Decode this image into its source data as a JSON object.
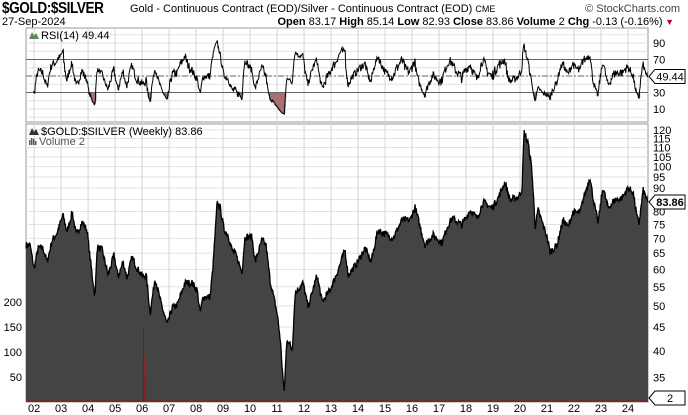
{
  "header": {
    "symbol": "$GOLD:$SILVER",
    "description": "Gold - Continuous Contract (EOD)/Silver - Continuous Contract (EOD)",
    "exchange": "CME",
    "brand": "© StockCharts.com",
    "date": "27-Sep-2024",
    "open_label": "Open",
    "open": "83.17",
    "high_label": "High",
    "high": "85.14",
    "low_label": "Low",
    "low": "82.93",
    "close_label": "Close",
    "close": "83.86",
    "volume_label": "Volume",
    "volume": "2",
    "chg_label": "Chg",
    "chg": "-0.13 (-0.16%)",
    "chg_color": "#c0003c"
  },
  "chart_data": [
    {
      "type": "line",
      "title": "RSI(14) 49.44",
      "indicator": "RSI(14)",
      "last_value": "49.44",
      "yticks": [
        10,
        30,
        50,
        70,
        90
      ],
      "ytick_labels": [
        "10",
        "30",
        "70",
        "90"
      ],
      "reference_lines": [
        30,
        50,
        70
      ],
      "ylim": [
        -5,
        108
      ],
      "line_color": "#000000",
      "oversold_fill_color": "#a87070",
      "grid": true
    },
    {
      "type": "area",
      "title": "$GOLD:$SILVER (Weekly) 83.86",
      "series_label": "$GOLD:$SILVER (Weekly)",
      "last_value": "83.86",
      "yscale": "log",
      "ylim": [
        31,
        127
      ],
      "yticks": [
        35,
        40,
        45,
        50,
        55,
        60,
        65,
        70,
        75,
        80,
        85,
        90,
        95,
        100,
        105,
        110,
        115,
        120
      ],
      "xticks": [
        "02",
        "03",
        "04",
        "05",
        "06",
        "07",
        "08",
        "09",
        "10",
        "11",
        "12",
        "13",
        "14",
        "15",
        "16",
        "17",
        "18",
        "19",
        "20",
        "21",
        "22",
        "23",
        "24"
      ],
      "xlim": [
        2001.7,
        2024.74
      ],
      "fill_color": "#444444",
      "line_color": "#000000",
      "grid": true,
      "points": [
        [
          2001.7,
          67.7
        ],
        [
          2001.85,
          67.7
        ],
        [
          2002.0,
          60.1
        ],
        [
          2002.15,
          66.7
        ],
        [
          2002.33,
          66.7
        ],
        [
          2002.48,
          62.2
        ],
        [
          2002.67,
          69.4
        ],
        [
          2002.85,
          71.9
        ],
        [
          2003.07,
          78.6
        ],
        [
          2003.22,
          72.2
        ],
        [
          2003.41,
          79.8
        ],
        [
          2003.56,
          71.2
        ],
        [
          2003.78,
          75.9
        ],
        [
          2003.96,
          73.0
        ],
        [
          2004.07,
          63.8
        ],
        [
          2004.26,
          52.0
        ],
        [
          2004.33,
          67.0
        ],
        [
          2004.52,
          66.1
        ],
        [
          2004.74,
          58.3
        ],
        [
          2004.96,
          64.4
        ],
        [
          2005.11,
          57.8
        ],
        [
          2005.3,
          62.2
        ],
        [
          2005.44,
          57.5
        ],
        [
          2005.63,
          63.8
        ],
        [
          2005.81,
          60.4
        ],
        [
          2006.04,
          57.8
        ],
        [
          2006.15,
          58.3
        ],
        [
          2006.3,
          48.3
        ],
        [
          2006.48,
          57.5
        ],
        [
          2006.67,
          51.5
        ],
        [
          2006.93,
          45.5
        ],
        [
          2007.11,
          49.5
        ],
        [
          2007.3,
          50.2
        ],
        [
          2007.59,
          56.1
        ],
        [
          2007.85,
          56.1
        ],
        [
          2008.04,
          54.1
        ],
        [
          2008.15,
          48.3
        ],
        [
          2008.26,
          52.3
        ],
        [
          2008.52,
          52.3
        ],
        [
          2008.63,
          61.3
        ],
        [
          2008.78,
          83.4
        ],
        [
          2008.89,
          81.8
        ],
        [
          2009.04,
          73.0
        ],
        [
          2009.19,
          71.2
        ],
        [
          2009.33,
          66.1
        ],
        [
          2009.48,
          64.4
        ],
        [
          2009.7,
          59.2
        ],
        [
          2009.81,
          70.5
        ],
        [
          2010.07,
          70.5
        ],
        [
          2010.19,
          62.2
        ],
        [
          2010.44,
          69.4
        ],
        [
          2010.59,
          67.7
        ],
        [
          2010.74,
          56.9
        ],
        [
          2011.0,
          48.3
        ],
        [
          2011.11,
          42.8
        ],
        [
          2011.26,
          32.4
        ],
        [
          2011.37,
          42.6
        ],
        [
          2011.56,
          40.2
        ],
        [
          2011.67,
          53.3
        ],
        [
          2011.96,
          56.1
        ],
        [
          2012.15,
          49.7
        ],
        [
          2012.48,
          58.3
        ],
        [
          2012.67,
          51.0
        ],
        [
          2012.96,
          54.1
        ],
        [
          2013.22,
          58.9
        ],
        [
          2013.52,
          66.1
        ],
        [
          2013.63,
          58.3
        ],
        [
          2013.96,
          61.9
        ],
        [
          2014.26,
          66.7
        ],
        [
          2014.48,
          62.2
        ],
        [
          2014.74,
          73.0
        ],
        [
          2015.07,
          71.2
        ],
        [
          2015.3,
          70.1
        ],
        [
          2015.63,
          76.7
        ],
        [
          2015.93,
          76.7
        ],
        [
          2016.11,
          81.8
        ],
        [
          2016.3,
          74.1
        ],
        [
          2016.48,
          67.7
        ],
        [
          2016.78,
          71.2
        ],
        [
          2017.11,
          68.4
        ],
        [
          2017.3,
          74.1
        ],
        [
          2017.48,
          77.4
        ],
        [
          2017.85,
          74.8
        ],
        [
          2018.15,
          80.6
        ],
        [
          2018.41,
          77.4
        ],
        [
          2018.63,
          83.9
        ],
        [
          2018.96,
          81.4
        ],
        [
          2019.19,
          85.6
        ],
        [
          2019.44,
          92.6
        ],
        [
          2019.63,
          84.7
        ],
        [
          2019.93,
          86.0
        ],
        [
          2020.07,
          89.0
        ],
        [
          2020.15,
          118.8
        ],
        [
          2020.3,
          112.4
        ],
        [
          2020.44,
          98.4
        ],
        [
          2020.56,
          74.1
        ],
        [
          2020.67,
          80.6
        ],
        [
          2021.0,
          70.5
        ],
        [
          2021.11,
          65.4
        ],
        [
          2021.37,
          67.7
        ],
        [
          2021.59,
          76.7
        ],
        [
          2021.78,
          74.1
        ],
        [
          2021.96,
          79.8
        ],
        [
          2022.22,
          79.4
        ],
        [
          2022.33,
          84.7
        ],
        [
          2022.59,
          95.0
        ],
        [
          2022.7,
          86.0
        ],
        [
          2022.89,
          75.5
        ],
        [
          2023.07,
          90.4
        ],
        [
          2023.26,
          81.4
        ],
        [
          2023.52,
          84.7
        ],
        [
          2023.78,
          85.6
        ],
        [
          2024.0,
          89.9
        ],
        [
          2024.19,
          88.2
        ],
        [
          2024.33,
          77.8
        ],
        [
          2024.41,
          75.5
        ],
        [
          2024.56,
          89.0
        ],
        [
          2024.74,
          83.86
        ]
      ]
    },
    {
      "type": "bar",
      "title": "Volume 2",
      "series_label": "Volume",
      "last_value": "2",
      "yticks": [
        50,
        100,
        150,
        200
      ],
      "ylim": [
        0,
        260
      ],
      "bar_color": "#8b2020",
      "baseline_value": 2,
      "spikes": [
        [
          2006.03,
          150
        ],
        [
          2006.06,
          95
        ],
        [
          2006.09,
          48
        ]
      ]
    }
  ]
}
